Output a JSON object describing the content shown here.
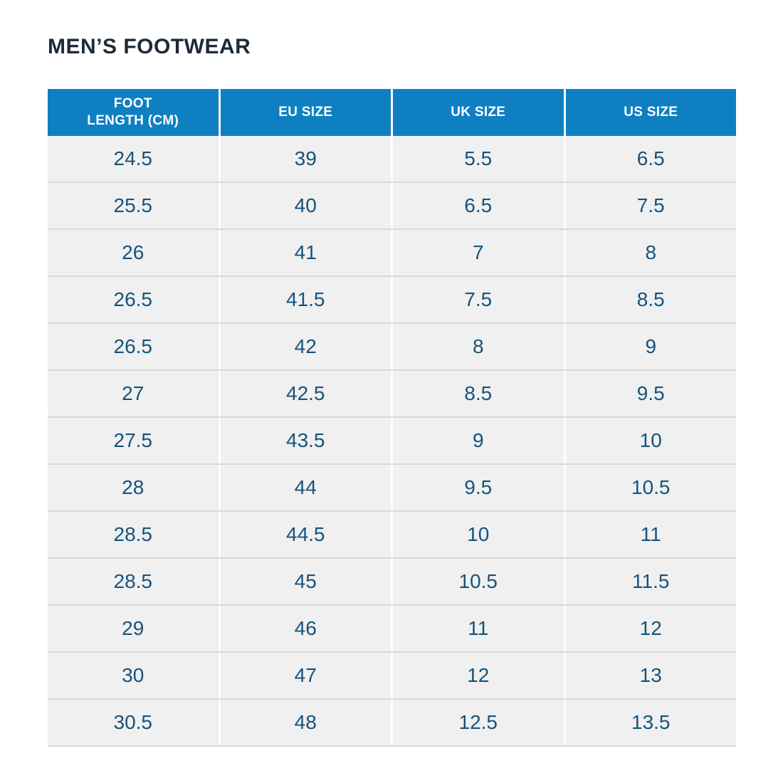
{
  "page": {
    "title": "MEN’S FOOTWEAR"
  },
  "table": {
    "columns": [
      "FOOT\nLENGTH (CM)",
      "EU SIZE",
      "UK SIZE",
      "US SIZE"
    ],
    "rows": [
      [
        "24.5",
        "39",
        "5.5",
        "6.5"
      ],
      [
        "25.5",
        "40",
        "6.5",
        "7.5"
      ],
      [
        "26",
        "41",
        "7",
        "8"
      ],
      [
        "26.5",
        "41.5",
        "7.5",
        "8.5"
      ],
      [
        "26.5",
        "42",
        "8",
        "9"
      ],
      [
        "27",
        "42.5",
        "8.5",
        "9.5"
      ],
      [
        "27.5",
        "43.5",
        "9",
        "10"
      ],
      [
        "28",
        "44",
        "9.5",
        "10.5"
      ],
      [
        "28.5",
        "44.5",
        "10",
        "11"
      ],
      [
        "28.5",
        "45",
        "10.5",
        "11.5"
      ],
      [
        "29",
        "46",
        "11",
        "12"
      ],
      [
        "30",
        "47",
        "12",
        "13"
      ],
      [
        "30.5",
        "48",
        "12.5",
        "13.5"
      ]
    ]
  },
  "colors": {
    "header_bg": "#0e80c2",
    "header_text": "#ffffff",
    "cell_bg": "#f0f0f0",
    "cell_text": "#16537c",
    "title_text": "#1e2a36",
    "row_divider": "#d9d9d9"
  },
  "chart_data": {
    "type": "table",
    "title": "MEN’S FOOTWEAR",
    "columns": [
      "FOOT LENGTH (CM)",
      "EU SIZE",
      "UK SIZE",
      "US SIZE"
    ],
    "rows": [
      [
        24.5,
        39,
        5.5,
        6.5
      ],
      [
        25.5,
        40,
        6.5,
        7.5
      ],
      [
        26,
        41,
        7,
        8
      ],
      [
        26.5,
        41.5,
        7.5,
        8.5
      ],
      [
        26.5,
        42,
        8,
        9
      ],
      [
        27,
        42.5,
        8.5,
        9.5
      ],
      [
        27.5,
        43.5,
        9,
        10
      ],
      [
        28,
        44,
        9.5,
        10.5
      ],
      [
        28.5,
        44.5,
        10,
        11
      ],
      [
        28.5,
        45,
        10.5,
        11.5
      ],
      [
        29,
        46,
        11,
        12
      ],
      [
        30,
        47,
        12,
        13
      ],
      [
        30.5,
        48,
        12.5,
        13.5
      ]
    ]
  }
}
